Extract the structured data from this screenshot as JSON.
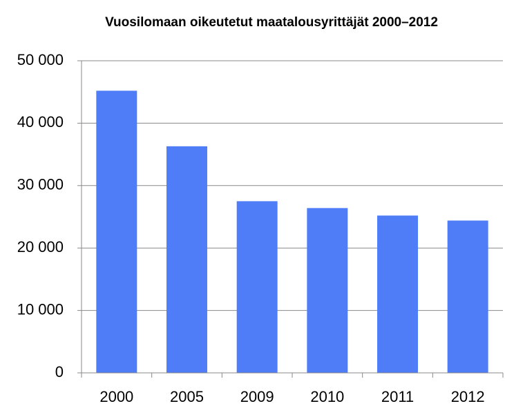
{
  "chart_data": {
    "type": "bar",
    "title": "Vuosilomaan oikeutetut maatalousyrittäjät 2000–2012",
    "categories": [
      "2000",
      "2005",
      "2009",
      "2010",
      "2011",
      "2012"
    ],
    "values": [
      45200,
      36300,
      27500,
      26400,
      25200,
      24400
    ],
    "color": "#4f7cf7",
    "ylim": [
      0,
      50000
    ],
    "yticks": [
      0,
      {
        "value": 10000,
        "label": "10 000"
      },
      {
        "value": 20000,
        "label": "20 000"
      },
      {
        "value": 30000,
        "label": "30 000"
      },
      {
        "value": 40000,
        "label": "40 000"
      },
      {
        "value": 50000,
        "label": "50 000"
      }
    ],
    "grid": true
  }
}
